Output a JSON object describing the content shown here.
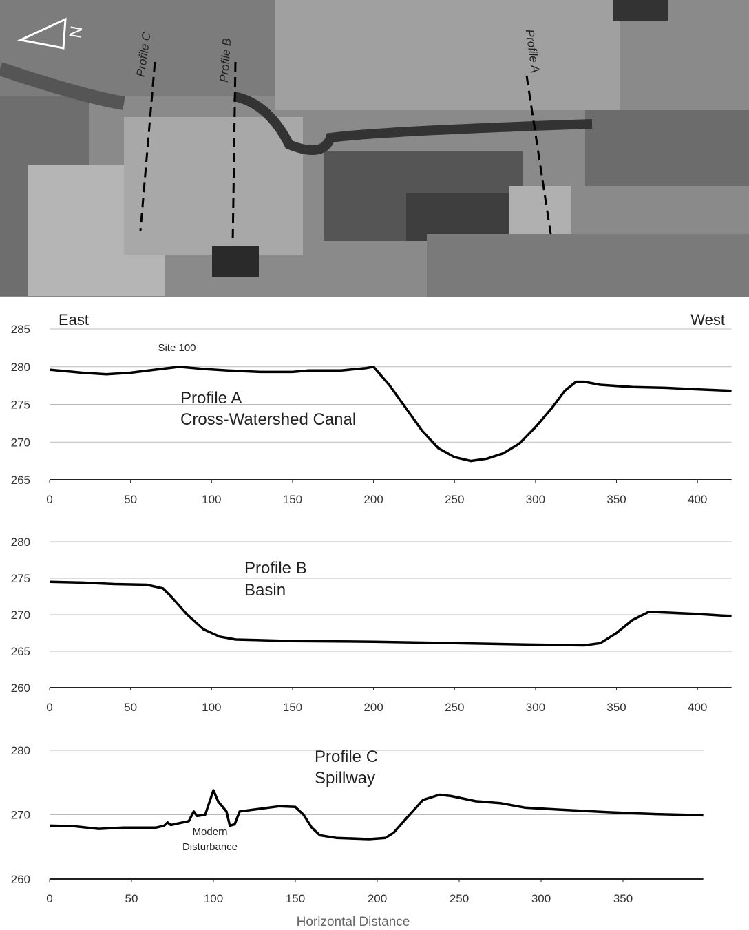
{
  "image": {
    "labels": [
      "Profile C",
      "Profile B",
      "Profile A"
    ],
    "north": "N"
  },
  "chart_data": [
    {
      "type": "line",
      "color": "#000000",
      "grid": true,
      "annotations": [
        "East",
        "West",
        "Site 100",
        "Profile A",
        "Cross-Watershed Canal"
      ],
      "xlim": [
        0,
        421
      ],
      "xticks": [
        0,
        50,
        100,
        150,
        200,
        250,
        300,
        350,
        400
      ],
      "ylim": [
        265,
        285
      ],
      "yticks": [
        265,
        270,
        275,
        280,
        285
      ],
      "x": [
        0,
        20,
        35,
        50,
        65,
        80,
        95,
        110,
        130,
        150,
        160,
        180,
        195,
        200,
        210,
        220,
        230,
        240,
        250,
        260,
        270,
        280,
        290,
        300,
        310,
        318,
        325,
        330,
        340,
        360,
        380,
        400,
        421
      ],
      "values": [
        279.6,
        279.2,
        279.0,
        279.2,
        279.6,
        280.0,
        279.7,
        279.5,
        279.3,
        279.3,
        279.5,
        279.5,
        279.8,
        280.0,
        277.5,
        274.5,
        271.5,
        269.2,
        268.0,
        267.5,
        267.8,
        268.5,
        269.8,
        272.0,
        274.5,
        276.8,
        278.0,
        278.0,
        277.6,
        277.3,
        277.2,
        277.0,
        276.8
      ]
    },
    {
      "type": "line",
      "color": "#000000",
      "grid": true,
      "annotations": [
        "Profile B",
        "Basin"
      ],
      "xlim": [
        0,
        421
      ],
      "xticks": [
        0,
        50,
        100,
        150,
        200,
        250,
        300,
        350,
        400
      ],
      "ylim": [
        260,
        280
      ],
      "yticks": [
        260,
        265,
        270,
        275,
        280
      ],
      "x": [
        0,
        20,
        40,
        60,
        70,
        75,
        85,
        95,
        105,
        115,
        150,
        200,
        250,
        300,
        330,
        340,
        350,
        360,
        370,
        380,
        400,
        421
      ],
      "values": [
        274.5,
        274.4,
        274.2,
        274.1,
        273.6,
        272.5,
        270.0,
        268.0,
        267.0,
        266.6,
        266.4,
        266.3,
        266.1,
        265.9,
        265.8,
        266.1,
        267.5,
        269.3,
        270.4,
        270.3,
        270.1,
        269.8
      ]
    },
    {
      "type": "line",
      "color": "#000000",
      "grid": true,
      "annotations": [
        "Profile C",
        "Spillway",
        "Modern",
        "Disturbance"
      ],
      "xlabel": "Horizontal Distance",
      "xlim": [
        0,
        399
      ],
      "xticks": [
        0,
        50,
        100,
        150,
        200,
        250,
        300,
        350
      ],
      "ylim": [
        260,
        280
      ],
      "yticks": [
        260,
        270,
        280
      ],
      "x": [
        0,
        15,
        30,
        45,
        65,
        70,
        72,
        74,
        85,
        88,
        90,
        95,
        100,
        103,
        108,
        110,
        113,
        116,
        125,
        140,
        150,
        155,
        160,
        165,
        175,
        195,
        205,
        210,
        218,
        228,
        238,
        245,
        260,
        275,
        290,
        310,
        340,
        370,
        399
      ],
      "values": [
        268.3,
        268.2,
        267.8,
        268.0,
        268.0,
        268.3,
        268.8,
        268.4,
        269.0,
        270.5,
        269.8,
        270.0,
        273.8,
        272.0,
        270.5,
        268.3,
        268.5,
        270.5,
        270.8,
        271.3,
        271.2,
        270.0,
        268.0,
        266.8,
        266.4,
        266.2,
        266.4,
        267.2,
        269.5,
        272.3,
        273.1,
        272.9,
        272.1,
        271.8,
        271.1,
        270.8,
        270.4,
        270.1,
        269.9
      ]
    }
  ]
}
